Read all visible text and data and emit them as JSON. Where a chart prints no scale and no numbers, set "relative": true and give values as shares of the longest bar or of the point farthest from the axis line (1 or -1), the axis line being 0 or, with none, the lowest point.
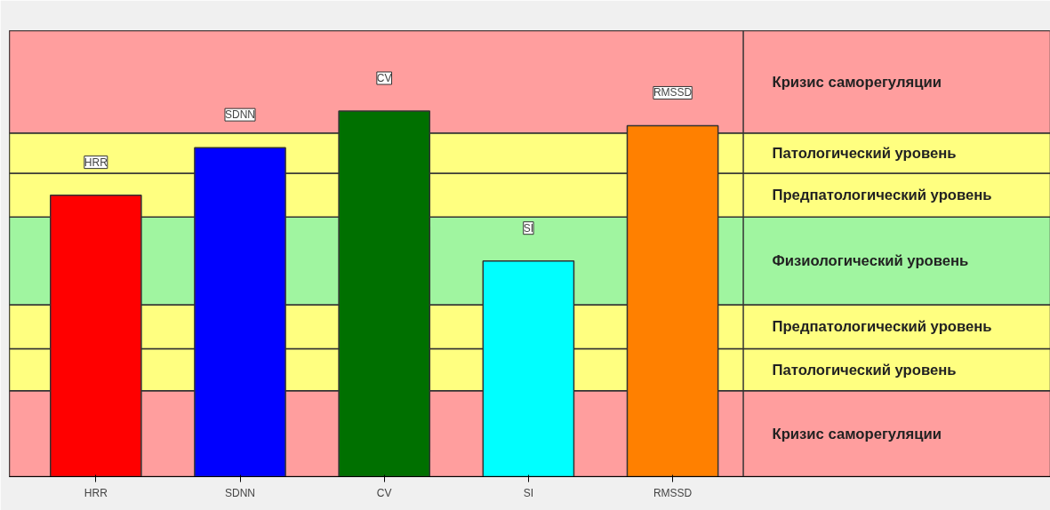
{
  "chart_data": {
    "type": "bar",
    "relative": true,
    "categories": [
      "HRR",
      "SDNN",
      "CV",
      "SI",
      "RMSSD"
    ],
    "values": [
      0.77,
      0.9,
      1,
      0.59,
      0.96
    ],
    "colors": [
      "#ff0000",
      "#0000ff",
      "#007000",
      "#00ffff",
      "#ff8000"
    ],
    "bands": [
      {
        "axis": "y",
        "from": 0,
        "to": 0.235,
        "label": "Кризис саморегуляции",
        "color": "#ff9e9e"
      },
      {
        "axis": "y",
        "from": 0.235,
        "to": 0.35,
        "label": "Патологический уровень",
        "color": "#ffff80"
      },
      {
        "axis": "y",
        "from": 0.35,
        "to": 0.47,
        "label": "Предпатологический уровень",
        "color": "#ffff80"
      },
      {
        "axis": "y",
        "from": 0.47,
        "to": 0.71,
        "label": "Физиологический уровень",
        "color": "#a0f5a0"
      },
      {
        "axis": "y",
        "from": 0.71,
        "to": 0.83,
        "label": "Предпатологический уровень",
        "color": "#ffff80"
      },
      {
        "axis": "y",
        "from": 0.83,
        "to": 0.94,
        "label": "Патологический уровень",
        "color": "#ffff80"
      },
      {
        "axis": "y",
        "from": 0.94,
        "to": 1.22,
        "label": "Кризис саморегуляции",
        "color": "#ff9e9e"
      }
    ],
    "grid": false
  }
}
